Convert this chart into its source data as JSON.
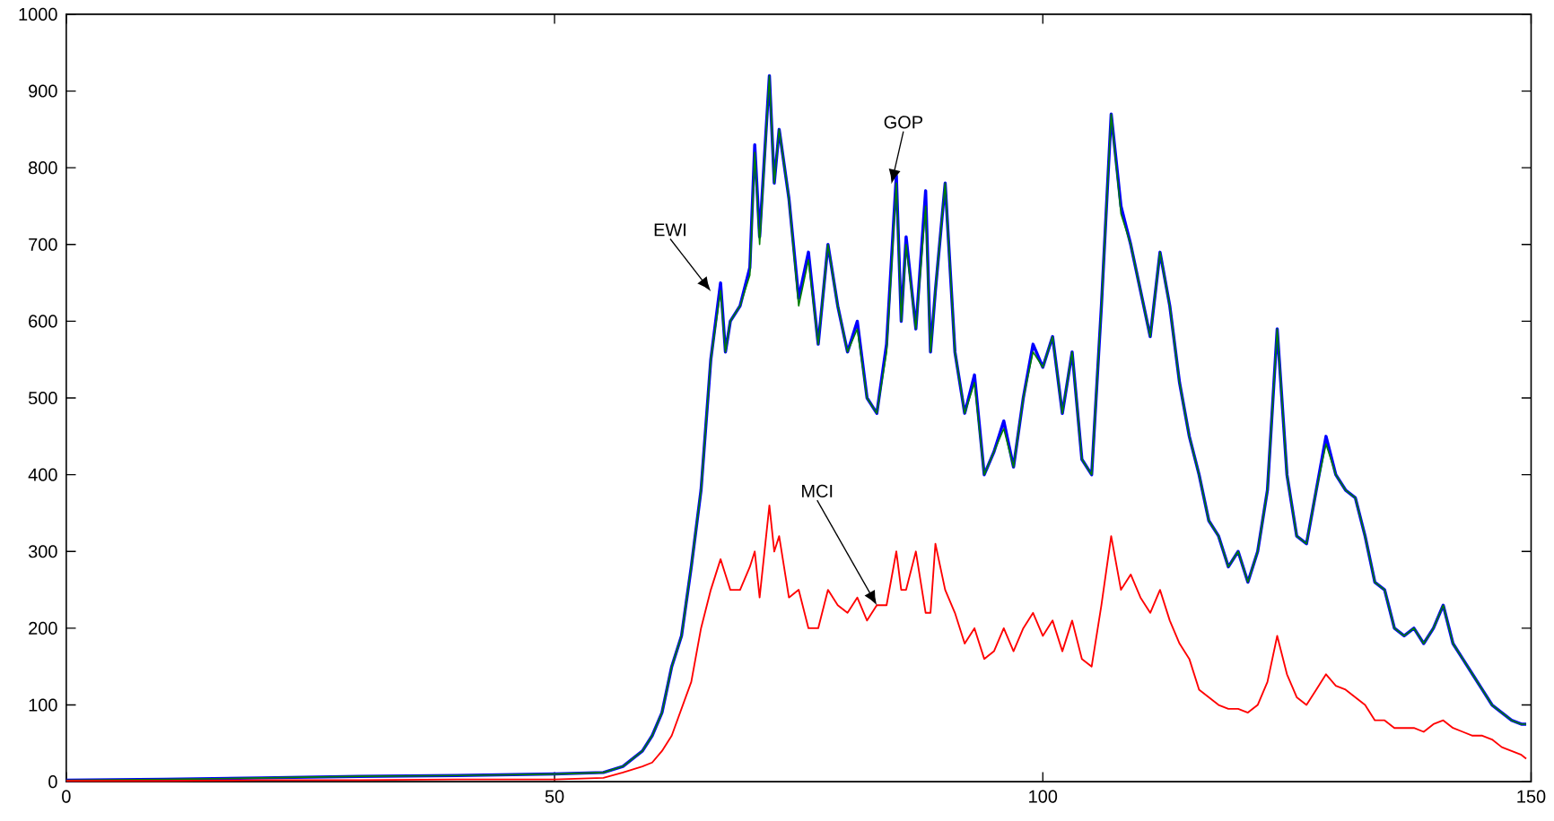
{
  "chart_data": {
    "type": "line",
    "x": [
      0,
      10,
      20,
      30,
      40,
      50,
      55,
      57,
      59,
      60,
      61,
      62,
      63,
      64,
      65,
      66,
      67,
      67.5,
      68,
      69,
      70,
      70.5,
      71,
      72,
      72.5,
      73,
      74,
      75,
      76,
      77,
      78,
      79,
      80,
      81,
      82,
      83,
      84,
      85,
      85.5,
      86,
      87,
      88,
      88.5,
      89,
      90,
      91,
      92,
      93,
      94,
      95,
      96,
      97,
      98,
      99,
      100,
      101,
      102,
      103,
      104,
      105,
      106,
      107,
      108,
      109,
      110,
      111,
      112,
      113,
      114,
      115,
      116,
      117,
      118,
      119,
      120,
      121,
      122,
      123,
      124,
      125,
      126,
      127,
      128,
      129,
      130,
      131,
      132,
      133,
      134,
      135,
      136,
      137,
      138,
      139,
      140,
      141,
      142,
      143,
      144,
      145,
      146,
      147,
      148,
      149,
      149.5
    ],
    "series": [
      {
        "color": "#0000ff",
        "values": [
          2,
          3,
          5,
          7,
          8,
          10,
          12,
          20,
          40,
          60,
          90,
          150,
          190,
          280,
          380,
          550,
          650,
          560,
          600,
          620,
          670,
          830,
          710,
          920,
          780,
          850,
          760,
          630,
          690,
          570,
          700,
          620,
          560,
          600,
          500,
          480,
          570,
          790,
          600,
          710,
          590,
          770,
          560,
          640,
          780,
          560,
          480,
          530,
          400,
          430,
          470,
          410,
          500,
          570,
          540,
          580,
          480,
          560,
          420,
          400,
          620,
          870,
          750,
          700,
          640,
          580,
          690,
          620,
          520,
          450,
          400,
          340,
          320,
          280,
          300,
          260,
          300,
          380,
          590,
          400,
          320,
          310,
          380,
          450,
          400,
          380,
          370,
          320,
          260,
          250,
          200,
          190,
          200,
          180,
          200,
          230,
          180,
          160,
          140,
          120,
          100,
          90,
          80,
          75,
          75
        ]
      },
      {
        "color": "#007f00",
        "values": [
          2,
          3,
          5,
          7,
          8,
          10,
          12,
          20,
          40,
          60,
          90,
          150,
          190,
          280,
          380,
          550,
          640,
          560,
          600,
          620,
          660,
          820,
          700,
          920,
          780,
          850,
          760,
          620,
          680,
          570,
          700,
          620,
          560,
          590,
          500,
          480,
          560,
          780,
          600,
          700,
          590,
          750,
          560,
          640,
          780,
          560,
          480,
          520,
          400,
          430,
          460,
          410,
          500,
          560,
          540,
          580,
          480,
          560,
          420,
          400,
          620,
          870,
          740,
          700,
          640,
          580,
          690,
          620,
          520,
          450,
          400,
          340,
          320,
          280,
          300,
          260,
          300,
          380,
          590,
          400,
          320,
          310,
          380,
          440,
          400,
          380,
          370,
          320,
          260,
          250,
          200,
          190,
          200,
          180,
          200,
          230,
          180,
          160,
          140,
          120,
          100,
          90,
          80,
          75,
          75
        ]
      },
      {
        "color": "#ff0000",
        "values": [
          1,
          1,
          2,
          2,
          3,
          3,
          5,
          12,
          20,
          25,
          40,
          60,
          95,
          130,
          200,
          250,
          290,
          270,
          250,
          250,
          280,
          300,
          240,
          360,
          300,
          320,
          240,
          250,
          200,
          200,
          250,
          230,
          220,
          240,
          210,
          230,
          230,
          300,
          250,
          250,
          300,
          220,
          220,
          310,
          250,
          220,
          180,
          200,
          160,
          170,
          200,
          170,
          200,
          220,
          190,
          210,
          170,
          210,
          160,
          150,
          230,
          320,
          250,
          270,
          240,
          220,
          250,
          210,
          180,
          160,
          120,
          110,
          100,
          95,
          95,
          90,
          100,
          130,
          190,
          140,
          110,
          100,
          120,
          140,
          125,
          120,
          110,
          100,
          80,
          80,
          70,
          70,
          70,
          65,
          75,
          80,
          70,
          65,
          60,
          60,
          55,
          45,
          40,
          35,
          30
        ]
      }
    ],
    "annotations": [
      {
        "text": "EWI",
        "x": 66,
        "y": 639
      },
      {
        "text": "GOP",
        "x": 84.5,
        "y": 779
      },
      {
        "text": "MCI",
        "x": 83,
        "y": 230
      }
    ],
    "xlim": [
      0,
      150
    ],
    "xticks": [
      0,
      50,
      100,
      150
    ],
    "ylim": [
      0,
      1000
    ],
    "yticks": [
      0,
      100,
      200,
      300,
      400,
      500,
      600,
      700,
      800,
      900,
      1000
    ],
    "grid": false,
    "marker": "none",
    "line_style": "solid"
  }
}
